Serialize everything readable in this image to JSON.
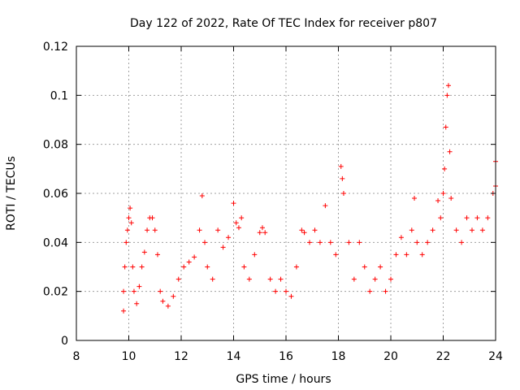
{
  "chart_data": {
    "type": "scatter",
    "title": "Day 122 of 2022, Rate Of TEC Index for receiver p807",
    "xlabel": "GPS time / hours",
    "ylabel": "ROTI / TECUs",
    "xlim": [
      8,
      24
    ],
    "ylim": [
      0,
      0.12
    ],
    "x_ticks": [
      8,
      10,
      12,
      14,
      16,
      18,
      20,
      22,
      24
    ],
    "x_tick_labels": [
      "8",
      "10",
      "12",
      "14",
      "16",
      "18",
      "20",
      "22",
      "24"
    ],
    "y_ticks": [
      0,
      0.02,
      0.04,
      0.06,
      0.08,
      0.1,
      0.12
    ],
    "y_tick_labels": [
      "0",
      "0.02",
      "0.04",
      "0.06",
      "0.08",
      "0.1",
      "0.12"
    ],
    "grid": true,
    "marker": "+",
    "color": "#ff0000",
    "series": [
      {
        "name": "ROTI",
        "points": [
          [
            9.8,
            0.012
          ],
          [
            9.8,
            0.02
          ],
          [
            9.85,
            0.03
          ],
          [
            9.9,
            0.04
          ],
          [
            9.95,
            0.045
          ],
          [
            10.0,
            0.05
          ],
          [
            10.05,
            0.054
          ],
          [
            10.1,
            0.048
          ],
          [
            10.15,
            0.03
          ],
          [
            10.2,
            0.02
          ],
          [
            10.3,
            0.015
          ],
          [
            10.4,
            0.022
          ],
          [
            10.5,
            0.03
          ],
          [
            10.6,
            0.036
          ],
          [
            10.7,
            0.045
          ],
          [
            10.8,
            0.05
          ],
          [
            10.9,
            0.05
          ],
          [
            11.0,
            0.045
          ],
          [
            11.1,
            0.035
          ],
          [
            11.2,
            0.02
          ],
          [
            11.3,
            0.016
          ],
          [
            11.5,
            0.014
          ],
          [
            11.7,
            0.018
          ],
          [
            11.9,
            0.025
          ],
          [
            12.1,
            0.03
          ],
          [
            12.3,
            0.032
          ],
          [
            12.5,
            0.034
          ],
          [
            12.7,
            0.045
          ],
          [
            12.8,
            0.059
          ],
          [
            12.9,
            0.04
          ],
          [
            13.0,
            0.03
          ],
          [
            13.2,
            0.025
          ],
          [
            13.4,
            0.045
          ],
          [
            13.6,
            0.038
          ],
          [
            13.8,
            0.042
          ],
          [
            14.0,
            0.056
          ],
          [
            14.1,
            0.048
          ],
          [
            14.2,
            0.046
          ],
          [
            14.3,
            0.05
          ],
          [
            14.4,
            0.03
          ],
          [
            14.6,
            0.025
          ],
          [
            14.8,
            0.035
          ],
          [
            15.0,
            0.044
          ],
          [
            15.1,
            0.046
          ],
          [
            15.2,
            0.044
          ],
          [
            15.4,
            0.025
          ],
          [
            15.6,
            0.02
          ],
          [
            15.8,
            0.025
          ],
          [
            16.0,
            0.02
          ],
          [
            16.2,
            0.018
          ],
          [
            16.4,
            0.03
          ],
          [
            16.6,
            0.045
          ],
          [
            16.7,
            0.044
          ],
          [
            16.9,
            0.04
          ],
          [
            17.1,
            0.045
          ],
          [
            17.3,
            0.04
          ],
          [
            17.5,
            0.055
          ],
          [
            17.7,
            0.04
          ],
          [
            17.9,
            0.035
          ],
          [
            18.1,
            0.071
          ],
          [
            18.15,
            0.066
          ],
          [
            18.2,
            0.06
          ],
          [
            18.4,
            0.04
          ],
          [
            18.6,
            0.025
          ],
          [
            18.8,
            0.04
          ],
          [
            19.0,
            0.03
          ],
          [
            19.2,
            0.02
          ],
          [
            19.4,
            0.025
          ],
          [
            19.6,
            0.03
          ],
          [
            19.8,
            0.02
          ],
          [
            20.0,
            0.025
          ],
          [
            20.2,
            0.035
          ],
          [
            20.4,
            0.042
          ],
          [
            20.6,
            0.035
          ],
          [
            20.8,
            0.045
          ],
          [
            20.9,
            0.058
          ],
          [
            21.0,
            0.04
          ],
          [
            21.2,
            0.035
          ],
          [
            21.4,
            0.04
          ],
          [
            21.6,
            0.045
          ],
          [
            21.8,
            0.057
          ],
          [
            21.9,
            0.05
          ],
          [
            22.0,
            0.06
          ],
          [
            22.05,
            0.07
          ],
          [
            22.1,
            0.087
          ],
          [
            22.15,
            0.1
          ],
          [
            22.2,
            0.104
          ],
          [
            22.25,
            0.077
          ],
          [
            22.3,
            0.058
          ],
          [
            22.5,
            0.045
          ],
          [
            22.7,
            0.04
          ],
          [
            22.9,
            0.05
          ],
          [
            23.1,
            0.045
          ],
          [
            23.3,
            0.05
          ],
          [
            23.5,
            0.045
          ],
          [
            23.7,
            0.05
          ],
          [
            23.9,
            0.06
          ],
          [
            24.0,
            0.073
          ],
          [
            24.0,
            0.063
          ]
        ]
      }
    ]
  }
}
